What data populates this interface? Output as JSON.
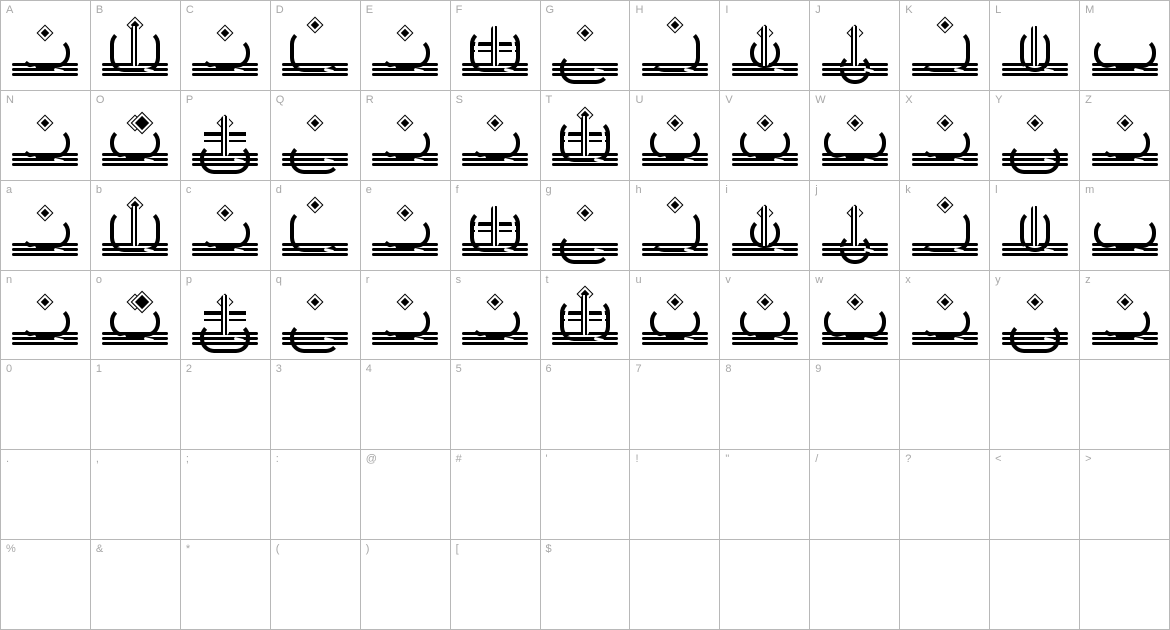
{
  "grid": {
    "cols": 13,
    "rows": 7,
    "border_color": "#b8b8b8",
    "label_color": "#a8a8a8",
    "label_fontsize": 11,
    "glyph_color": "#000000",
    "background": "#ffffff"
  },
  "cells": [
    {
      "label": "A",
      "has": true,
      "variant": "v-hook",
      "dot": "single"
    },
    {
      "label": "B",
      "has": true,
      "variant": "v-tall v-stem",
      "dot": "single"
    },
    {
      "label": "C",
      "has": true,
      "variant": "v-hook",
      "dot": "single"
    },
    {
      "label": "D",
      "has": true,
      "variant": "v-tall v-loop",
      "dot": "single"
    },
    {
      "label": "E",
      "has": true,
      "variant": "v-hook",
      "dot": "single"
    },
    {
      "label": "F",
      "has": true,
      "variant": "v-tall v-stem v-cross",
      "dot": "off"
    },
    {
      "label": "G",
      "has": true,
      "variant": "v-loop v-desc",
      "dot": "single"
    },
    {
      "label": "H",
      "has": true,
      "variant": "v-tall v-hook",
      "dot": "single"
    },
    {
      "label": "I",
      "has": true,
      "variant": "v-narrow v-stem",
      "dot": "single"
    },
    {
      "label": "J",
      "has": true,
      "variant": "v-narrow v-stem v-desc",
      "dot": "single"
    },
    {
      "label": "K",
      "has": true,
      "variant": "v-tall v-hook",
      "dot": "single"
    },
    {
      "label": "L",
      "has": true,
      "variant": "v-tall v-narrow v-stem",
      "dot": "off"
    },
    {
      "label": "M",
      "has": true,
      "variant": "v-wide",
      "dot": "off"
    },
    {
      "label": "N",
      "has": true,
      "variant": "v-hook",
      "dot": "single"
    },
    {
      "label": "O",
      "has": true,
      "variant": "",
      "dot": "dbl"
    },
    {
      "label": "P",
      "has": true,
      "variant": "v-stem v-desc v-cross",
      "dot": "single"
    },
    {
      "label": "Q",
      "has": true,
      "variant": "v-loop v-desc",
      "dot": "single"
    },
    {
      "label": "R",
      "has": true,
      "variant": "v-hook",
      "dot": "single"
    },
    {
      "label": "S",
      "has": true,
      "variant": "v-hook",
      "dot": "single"
    },
    {
      "label": "T",
      "has": true,
      "variant": "v-tall v-stem v-cross",
      "dot": "single"
    },
    {
      "label": "U",
      "has": true,
      "variant": "",
      "dot": "single"
    },
    {
      "label": "V",
      "has": true,
      "variant": "",
      "dot": "single"
    },
    {
      "label": "W",
      "has": true,
      "variant": "v-wide",
      "dot": "single"
    },
    {
      "label": "X",
      "has": true,
      "variant": "v-hook",
      "dot": "single"
    },
    {
      "label": "Y",
      "has": true,
      "variant": "v-desc",
      "dot": "single"
    },
    {
      "label": "Z",
      "has": true,
      "variant": "v-hook",
      "dot": "single"
    },
    {
      "label": "a",
      "has": true,
      "variant": "v-hook",
      "dot": "single"
    },
    {
      "label": "b",
      "has": true,
      "variant": "v-tall v-stem",
      "dot": "single"
    },
    {
      "label": "c",
      "has": true,
      "variant": "v-hook",
      "dot": "single"
    },
    {
      "label": "d",
      "has": true,
      "variant": "v-tall v-loop",
      "dot": "single"
    },
    {
      "label": "e",
      "has": true,
      "variant": "v-hook",
      "dot": "single"
    },
    {
      "label": "f",
      "has": true,
      "variant": "v-tall v-stem v-cross",
      "dot": "off"
    },
    {
      "label": "g",
      "has": true,
      "variant": "v-loop v-desc",
      "dot": "single"
    },
    {
      "label": "h",
      "has": true,
      "variant": "v-tall v-hook",
      "dot": "single"
    },
    {
      "label": "i",
      "has": true,
      "variant": "v-narrow v-stem",
      "dot": "single"
    },
    {
      "label": "j",
      "has": true,
      "variant": "v-narrow v-stem v-desc",
      "dot": "single"
    },
    {
      "label": "k",
      "has": true,
      "variant": "v-tall v-hook",
      "dot": "single"
    },
    {
      "label": "l",
      "has": true,
      "variant": "v-tall v-narrow v-stem",
      "dot": "off"
    },
    {
      "label": "m",
      "has": true,
      "variant": "v-wide",
      "dot": "off"
    },
    {
      "label": "n",
      "has": true,
      "variant": "v-hook",
      "dot": "single"
    },
    {
      "label": "o",
      "has": true,
      "variant": "",
      "dot": "dbl"
    },
    {
      "label": "p",
      "has": true,
      "variant": "v-stem v-desc v-cross",
      "dot": "single"
    },
    {
      "label": "q",
      "has": true,
      "variant": "v-loop v-desc",
      "dot": "single"
    },
    {
      "label": "r",
      "has": true,
      "variant": "v-hook",
      "dot": "single"
    },
    {
      "label": "s",
      "has": true,
      "variant": "v-hook",
      "dot": "single"
    },
    {
      "label": "t",
      "has": true,
      "variant": "v-tall v-stem v-cross",
      "dot": "single"
    },
    {
      "label": "u",
      "has": true,
      "variant": "",
      "dot": "single"
    },
    {
      "label": "v",
      "has": true,
      "variant": "",
      "dot": "single"
    },
    {
      "label": "w",
      "has": true,
      "variant": "v-wide",
      "dot": "single"
    },
    {
      "label": "x",
      "has": true,
      "variant": "v-hook",
      "dot": "single"
    },
    {
      "label": "y",
      "has": true,
      "variant": "v-desc",
      "dot": "single"
    },
    {
      "label": "z",
      "has": true,
      "variant": "v-hook",
      "dot": "single"
    },
    {
      "label": "0",
      "has": false
    },
    {
      "label": "1",
      "has": false
    },
    {
      "label": "2",
      "has": false
    },
    {
      "label": "3",
      "has": false
    },
    {
      "label": "4",
      "has": false
    },
    {
      "label": "5",
      "has": false
    },
    {
      "label": "6",
      "has": false
    },
    {
      "label": "7",
      "has": false
    },
    {
      "label": "8",
      "has": false
    },
    {
      "label": "9",
      "has": false
    },
    {
      "label": "",
      "has": false
    },
    {
      "label": "",
      "has": false
    },
    {
      "label": "",
      "has": false
    },
    {
      "label": ".",
      "has": false
    },
    {
      "label": ",",
      "has": false
    },
    {
      "label": ";",
      "has": false
    },
    {
      "label": ":",
      "has": false
    },
    {
      "label": "@",
      "has": false
    },
    {
      "label": "#",
      "has": false
    },
    {
      "label": "'",
      "has": false
    },
    {
      "label": "!",
      "has": false
    },
    {
      "label": "\"",
      "has": false
    },
    {
      "label": "/",
      "has": false
    },
    {
      "label": "?",
      "has": false
    },
    {
      "label": "<",
      "has": false
    },
    {
      "label": ">",
      "has": false
    },
    {
      "label": "%",
      "has": false
    },
    {
      "label": "&",
      "has": false
    },
    {
      "label": "*",
      "has": false
    },
    {
      "label": "(",
      "has": false
    },
    {
      "label": ")",
      "has": false
    },
    {
      "label": "[",
      "has": false
    },
    {
      "label": "$",
      "has": false
    },
    {
      "label": "",
      "has": false
    },
    {
      "label": "",
      "has": false
    },
    {
      "label": "",
      "has": false
    },
    {
      "label": "",
      "has": false
    },
    {
      "label": "",
      "has": false
    },
    {
      "label": "",
      "has": false
    }
  ]
}
